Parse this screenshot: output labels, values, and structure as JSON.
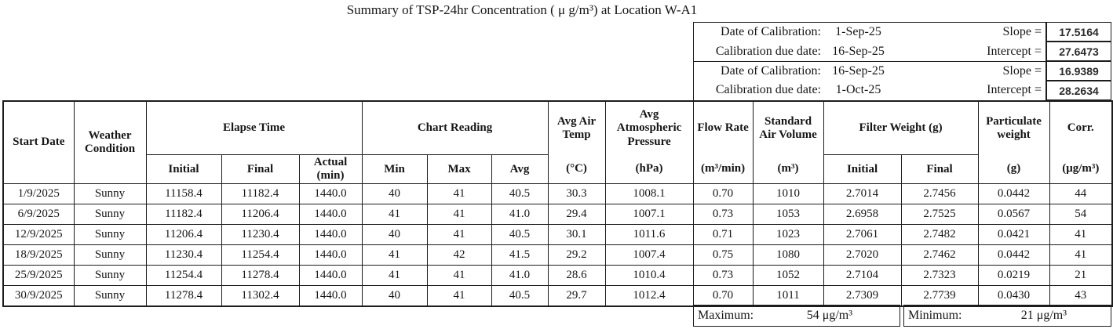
{
  "title": "Summary of TSP-24hr Concentration ( μ g/m³) at Location W-A1",
  "calibration": {
    "rows": [
      {
        "label": "Date of Calibration:",
        "date": "1-Sep-25",
        "param": "Slope =",
        "value": "17.5164"
      },
      {
        "label": "Calibration due date:",
        "date": "16-Sep-25",
        "param": "Intercept =",
        "value": "27.6473"
      },
      {
        "label": "Date of Calibration:",
        "date": "16-Sep-25",
        "param": "Slope =",
        "value": "16.9389"
      },
      {
        "label": "Calibration due date:",
        "date": "1-Oct-25",
        "param": "Intercept =",
        "value": "28.2634"
      }
    ]
  },
  "table": {
    "header": {
      "start_date": "Start Date",
      "weather_condition": "Weather Condition",
      "elapse_time": "Elapse Time",
      "elapse_initial": "Initial",
      "elapse_final": "Final",
      "elapse_actual": "Actual",
      "elapse_actual_unit": "(min)",
      "chart_reading": "Chart Reading",
      "chart_min": "Min",
      "chart_max": "Max",
      "chart_avg": "Avg",
      "avg_air_temp": "Avg Air Temp",
      "avg_air_temp_unit": "(°C)",
      "avg_pressure": "Avg Atmospheric Pressure",
      "avg_pressure_unit": "(hPa)",
      "flow_rate": "Flow Rate",
      "flow_rate_unit": "(m³/min)",
      "std_air_volume": "Standard Air Volume",
      "std_air_volume_unit": "(m³)",
      "filter_weight": "Filter Weight (g)",
      "filter_initial": "Initial",
      "filter_final": "Final",
      "particulate_weight": "Particulate weight",
      "particulate_unit": "(g)",
      "corr": "Corr.",
      "corr_unit": "(μg/m³)"
    },
    "rows": [
      [
        "1/9/2025",
        "Sunny",
        "11158.4",
        "11182.4",
        "1440.0",
        "40",
        "41",
        "40.5",
        "30.3",
        "1008.1",
        "0.70",
        "1010",
        "2.7014",
        "2.7456",
        "0.0442",
        "44"
      ],
      [
        "6/9/2025",
        "Sunny",
        "11182.4",
        "11206.4",
        "1440.0",
        "41",
        "41",
        "41.0",
        "29.4",
        "1007.1",
        "0.73",
        "1053",
        "2.6958",
        "2.7525",
        "0.0567",
        "54"
      ],
      [
        "12/9/2025",
        "Sunny",
        "11206.4",
        "11230.4",
        "1440.0",
        "40",
        "41",
        "40.5",
        "30.1",
        "1011.6",
        "0.71",
        "1023",
        "2.7061",
        "2.7482",
        "0.0421",
        "41"
      ],
      [
        "18/9/2025",
        "Sunny",
        "11230.4",
        "11254.4",
        "1440.0",
        "41",
        "42",
        "41.5",
        "29.2",
        "1007.4",
        "0.75",
        "1080",
        "2.7020",
        "2.7462",
        "0.0442",
        "41"
      ],
      [
        "25/9/2025",
        "Sunny",
        "11254.4",
        "11278.4",
        "1440.0",
        "41",
        "41",
        "41.0",
        "28.6",
        "1010.4",
        "0.73",
        "1052",
        "2.7104",
        "2.7323",
        "0.0219",
        "21"
      ],
      [
        "30/9/2025",
        "Sunny",
        "11278.4",
        "11302.4",
        "1440.0",
        "40",
        "41",
        "40.5",
        "29.7",
        "1012.4",
        "0.70",
        "1011",
        "2.7309",
        "2.7739",
        "0.0430",
        "43"
      ]
    ],
    "summary": {
      "maximum_label": "Maximum:",
      "maximum_value": "54 μg/m³",
      "minimum_label": "Minimum:",
      "minimum_value": "21 μg/m³"
    }
  },
  "colors": {
    "background": "#ffffff",
    "border": "#1c1c1c",
    "text": "#161616"
  }
}
